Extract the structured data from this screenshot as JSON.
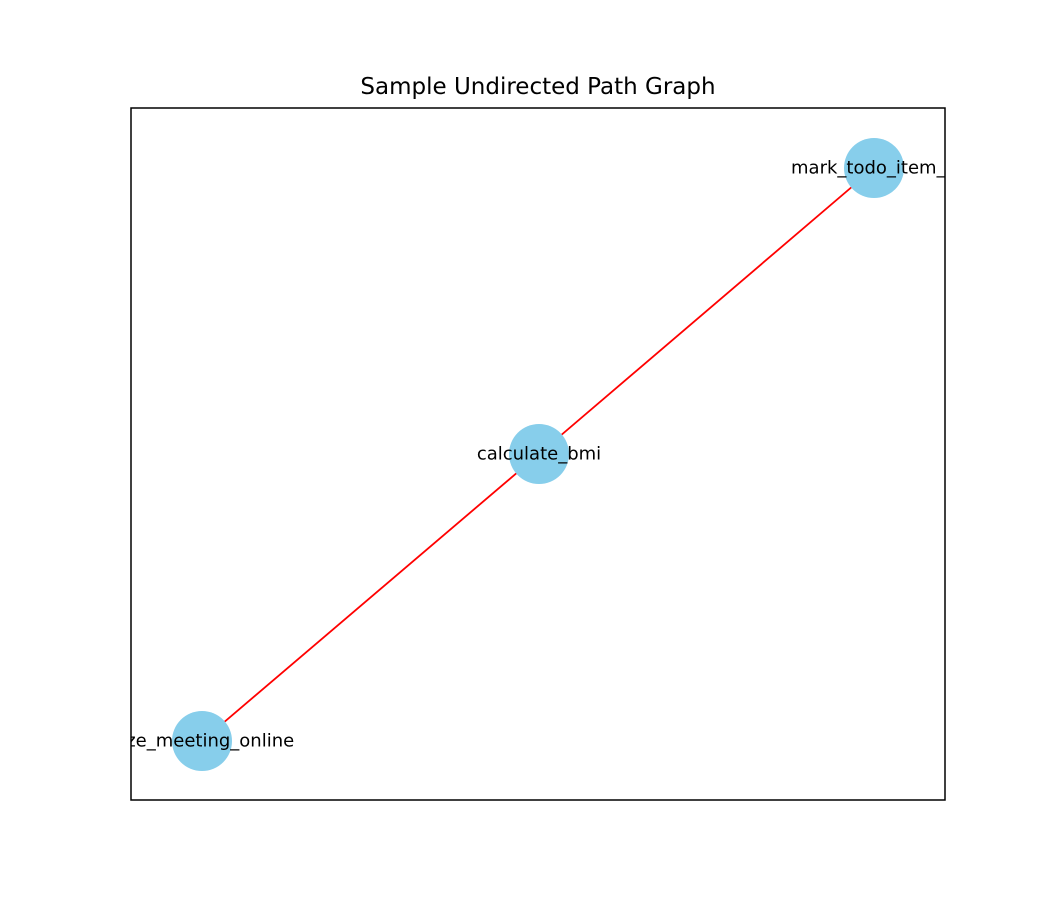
{
  "title": "Sample Undirected Path Graph",
  "colors": {
    "node_fill": "#87CEEB",
    "edge_stroke": "#FF0000",
    "frame_stroke": "#000000",
    "background": "#FFFFFF"
  },
  "graph": {
    "directed": false,
    "nodes": [
      {
        "id": "organize_meeting_online",
        "label": "nize_meeting_online"
      },
      {
        "id": "calculate_bmi",
        "label": "calculate_bmi"
      },
      {
        "id": "mark_todo_item_d",
        "label": "mark_todo_item_d"
      }
    ],
    "edges": [
      {
        "source": "organize_meeting_online",
        "target": "calculate_bmi"
      },
      {
        "source": "calculate_bmi",
        "target": "mark_todo_item_d"
      }
    ]
  }
}
